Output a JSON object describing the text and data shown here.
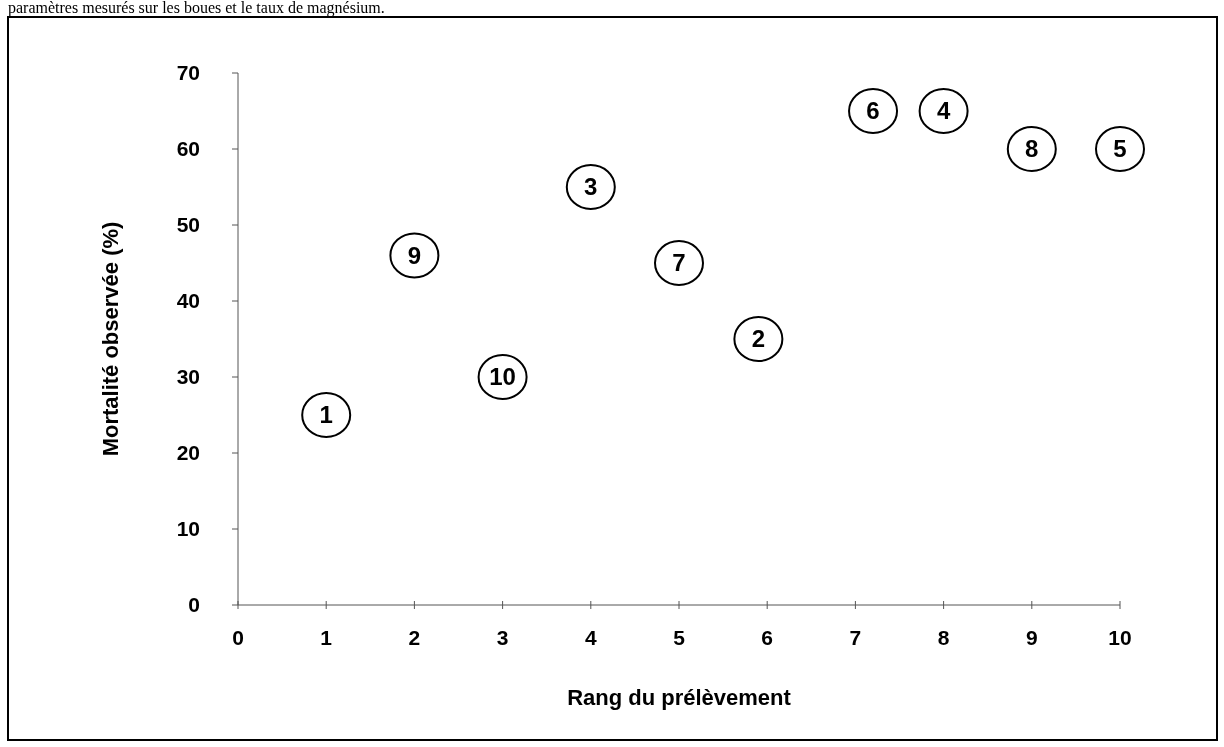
{
  "chart_data": {
    "type": "scatter",
    "xlabel": "Rang du prélèvement",
    "ylabel": "Mortalité observée (%)",
    "x": [
      1,
      2,
      3,
      4,
      5,
      5.9,
      7.2,
      8,
      9,
      10
    ],
    "values": [
      25,
      46,
      30,
      55,
      45,
      35,
      65,
      65,
      60,
      60
    ],
    "color": "#000000",
    "marker": "circle",
    "grid": false,
    "xlim": [
      0,
      10
    ],
    "xticks": [
      0,
      1,
      2,
      3,
      4,
      5,
      6,
      7,
      8,
      9,
      10
    ],
    "ylim": [
      0,
      70
    ],
    "yticks": [
      0,
      10,
      20,
      30,
      40,
      50,
      60,
      70
    ],
    "annotations": [
      "paramètres mesurés sur les boues et le taux de magnésium.",
      {
        "text": "1",
        "x": 1,
        "y": 25
      },
      {
        "text": "9",
        "x": 2,
        "y": 46
      },
      {
        "text": "10",
        "x": 3,
        "y": 30
      },
      {
        "text": "3",
        "x": 4,
        "y": 55
      },
      {
        "text": "7",
        "x": 5,
        "y": 45
      },
      {
        "text": "2",
        "x": 5.9,
        "y": 35
      },
      {
        "text": "6",
        "x": 7.2,
        "y": 65
      },
      {
        "text": "4",
        "x": 8,
        "y": 65
      },
      {
        "text": "8",
        "x": 9,
        "y": 60
      },
      {
        "text": "5",
        "x": 10,
        "y": 60
      }
    ]
  }
}
